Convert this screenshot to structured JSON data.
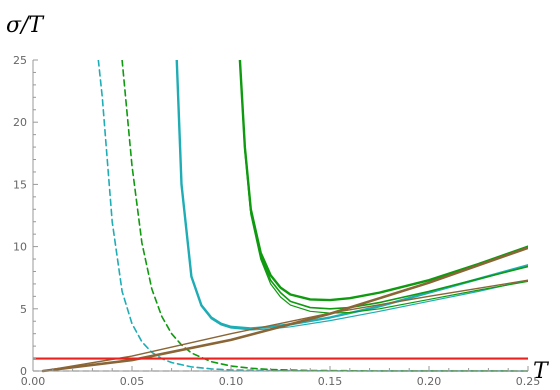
{
  "chart_data": {
    "type": "line",
    "title": "",
    "xlabel": "T",
    "ylabel": "σ/T",
    "xlim": [
      0,
      0.25
    ],
    "ylim": [
      0,
      25
    ],
    "xticks": [
      "0.00",
      "0.05",
      "0.10",
      "0.15",
      "0.20",
      "0.25"
    ],
    "yticks": [
      "0",
      "5",
      "10",
      "15",
      "20",
      "25"
    ],
    "grid": false,
    "legend": "none",
    "colors": {
      "cyan": "#1FADB5",
      "green": "#0F9A0F",
      "brown": "#8A6535",
      "red": "#E8231F",
      "gray": "#999999"
    },
    "series": [
      {
        "color": "#1FADB5",
        "width": 1.6,
        "dash": true,
        "points": [
          [
            0.033,
            25
          ],
          [
            0.035,
            22
          ],
          [
            0.04,
            12
          ],
          [
            0.045,
            6.4
          ],
          [
            0.05,
            3.8
          ],
          [
            0.055,
            2.35
          ],
          [
            0.06,
            1.5
          ],
          [
            0.065,
            1.0
          ],
          [
            0.07,
            0.68
          ],
          [
            0.08,
            0.33
          ],
          [
            0.09,
            0.17
          ],
          [
            0.1,
            0.08
          ],
          [
            0.12,
            0.03
          ],
          [
            0.15,
            0.01
          ],
          [
            0.25,
            0
          ]
        ]
      },
      {
        "color": "#0F9A0F",
        "width": 1.6,
        "dash": true,
        "points": [
          [
            0.045,
            25
          ],
          [
            0.05,
            16.5
          ],
          [
            0.055,
            10.3
          ],
          [
            0.06,
            6.6
          ],
          [
            0.065,
            4.4
          ],
          [
            0.07,
            3.0
          ],
          [
            0.075,
            2.1
          ],
          [
            0.08,
            1.45
          ],
          [
            0.09,
            0.75
          ],
          [
            0.1,
            0.4
          ],
          [
            0.11,
            0.22
          ],
          [
            0.12,
            0.12
          ],
          [
            0.14,
            0.04
          ],
          [
            0.17,
            0.01
          ],
          [
            0.25,
            0
          ]
        ]
      },
      {
        "color": "#999999",
        "width": 1.2,
        "dash": true,
        "points": [
          [
            0,
            0
          ],
          [
            0.25,
            0
          ]
        ]
      },
      {
        "color": "#1FADB5",
        "width": 2.4,
        "dash": false,
        "points": [
          [
            0.0726,
            25
          ],
          [
            0.075,
            15
          ],
          [
            0.08,
            7.6
          ],
          [
            0.085,
            5.3
          ],
          [
            0.09,
            4.3
          ],
          [
            0.095,
            3.8
          ],
          [
            0.1,
            3.55
          ],
          [
            0.11,
            3.42
          ],
          [
            0.12,
            3.55
          ],
          [
            0.13,
            3.75
          ],
          [
            0.15,
            4.3
          ],
          [
            0.175,
            5.2
          ],
          [
            0.2,
            6.3
          ],
          [
            0.225,
            7.4
          ],
          [
            0.25,
            8.5
          ]
        ]
      },
      {
        "color": "#1FADB5",
        "width": 1.2,
        "dash": false,
        "points": [
          [
            0.0726,
            25
          ],
          [
            0.075,
            14.9
          ],
          [
            0.08,
            7.5
          ],
          [
            0.085,
            5.2
          ],
          [
            0.09,
            4.2
          ],
          [
            0.095,
            3.7
          ],
          [
            0.1,
            3.45
          ],
          [
            0.11,
            3.3
          ],
          [
            0.12,
            3.38
          ],
          [
            0.13,
            3.55
          ],
          [
            0.15,
            4.05
          ],
          [
            0.175,
            4.8
          ],
          [
            0.2,
            5.6
          ],
          [
            0.225,
            6.4
          ],
          [
            0.25,
            7.3
          ]
        ]
      },
      {
        "color": "#0F9A0F",
        "width": 2.4,
        "dash": false,
        "points": [
          [
            0.1045,
            25
          ],
          [
            0.107,
            18
          ],
          [
            0.11,
            13
          ],
          [
            0.115,
            9.5
          ],
          [
            0.12,
            7.7
          ],
          [
            0.125,
            6.7
          ],
          [
            0.13,
            6.15
          ],
          [
            0.14,
            5.75
          ],
          [
            0.15,
            5.7
          ],
          [
            0.16,
            5.85
          ],
          [
            0.175,
            6.3
          ],
          [
            0.2,
            7.3
          ],
          [
            0.225,
            8.6
          ],
          [
            0.25,
            10.0
          ]
        ]
      },
      {
        "color": "#0F9A0F",
        "width": 1.6,
        "dash": false,
        "points": [
          [
            0.1045,
            25
          ],
          [
            0.107,
            17.8
          ],
          [
            0.11,
            12.8
          ],
          [
            0.115,
            9.2
          ],
          [
            0.12,
            7.3
          ],
          [
            0.125,
            6.3
          ],
          [
            0.13,
            5.6
          ],
          [
            0.14,
            5.1
          ],
          [
            0.15,
            5.0
          ],
          [
            0.16,
            5.1
          ],
          [
            0.175,
            5.5
          ],
          [
            0.2,
            6.4
          ],
          [
            0.225,
            7.4
          ],
          [
            0.25,
            8.4
          ]
        ]
      },
      {
        "color": "#0F9A0F",
        "width": 1.2,
        "dash": false,
        "points": [
          [
            0.1045,
            25
          ],
          [
            0.107,
            17.7
          ],
          [
            0.11,
            12.6
          ],
          [
            0.115,
            9.0
          ],
          [
            0.12,
            7.0
          ],
          [
            0.125,
            5.95
          ],
          [
            0.13,
            5.3
          ],
          [
            0.14,
            4.8
          ],
          [
            0.15,
            4.65
          ],
          [
            0.16,
            4.7
          ],
          [
            0.175,
            5.0
          ],
          [
            0.2,
            5.75
          ],
          [
            0.225,
            6.5
          ],
          [
            0.25,
            7.2
          ]
        ]
      },
      {
        "color": "#8A6535",
        "width": 2.6,
        "dash": false,
        "points": [
          [
            0.005,
            0
          ],
          [
            0.05,
            0.88
          ],
          [
            0.1,
            2.5
          ],
          [
            0.15,
            4.6
          ],
          [
            0.2,
            7.1
          ],
          [
            0.25,
            9.9
          ]
        ]
      },
      {
        "color": "#8A6535",
        "width": 1.4,
        "dash": false,
        "points": [
          [
            0.005,
            0
          ],
          [
            0.05,
            1.2
          ],
          [
            0.1,
            3.0
          ],
          [
            0.15,
            4.65
          ],
          [
            0.2,
            6.0
          ],
          [
            0.25,
            7.3
          ]
        ]
      },
      {
        "color": "#E8231F",
        "width": 2.2,
        "dash": false,
        "points": [
          [
            0,
            1
          ],
          [
            0.25,
            1
          ]
        ]
      }
    ]
  }
}
